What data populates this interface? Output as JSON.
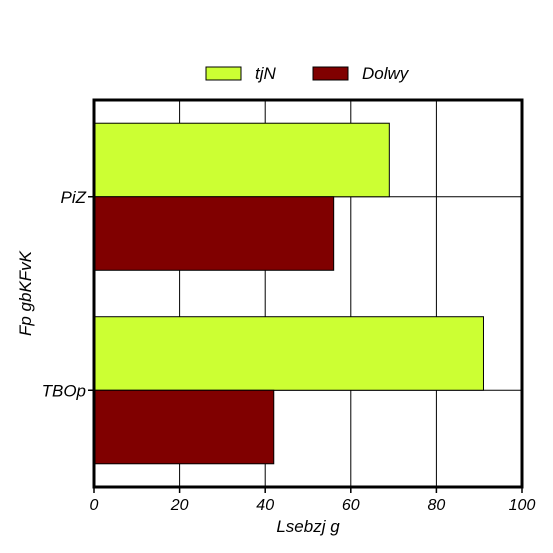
{
  "chart_data": {
    "type": "bar",
    "orientation": "horizontal",
    "categories": [
      "PiZ",
      "TBOp"
    ],
    "series": [
      {
        "name": "tjN",
        "color": "#ccff33",
        "values": [
          69,
          91
        ]
      },
      {
        "name": "Dolwy",
        "color": "#800000",
        "values": [
          56,
          42
        ]
      }
    ],
    "xlabel": "Lsebzj g",
    "ylabel": "Fp gbKFvK",
    "xlim": [
      0,
      100
    ],
    "xticks": [
      0,
      20,
      40,
      60,
      80,
      100
    ],
    "grid": true,
    "legend_position": "top-center"
  }
}
